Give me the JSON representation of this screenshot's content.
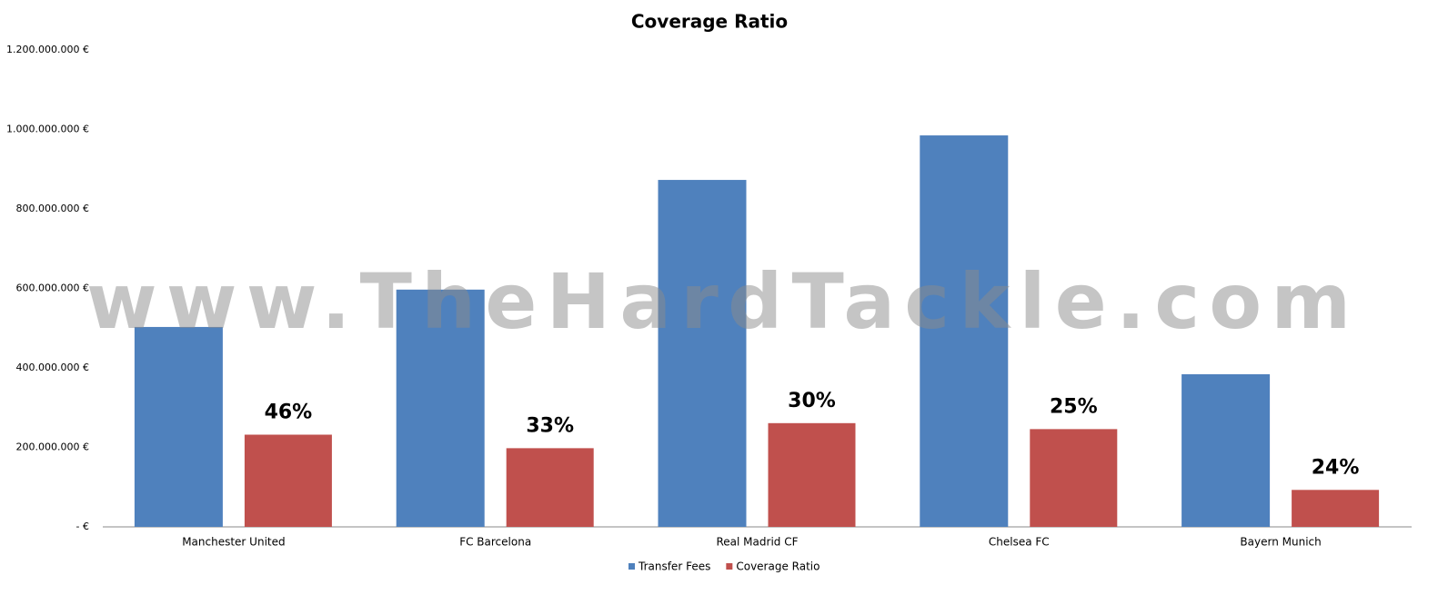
{
  "chart_data": {
    "type": "bar",
    "title": "Coverage Ratio",
    "categories": [
      "Manchester United",
      "FC Barcelona",
      "Real Madrid CF",
      "Chelsea FC",
      "Bayern Munich"
    ],
    "series": [
      {
        "name": "Transfer Fees",
        "color": "#4f81bd",
        "values": [
          503000000,
          597000000,
          873000000,
          985000000,
          384000000
        ]
      },
      {
        "name": "Coverage Ratio",
        "color": "#c0504d",
        "values": [
          232000000,
          198000000,
          261000000,
          246000000,
          93000000
        ]
      }
    ],
    "annotations": [
      "46%",
      "33%",
      "30%",
      "25%",
      "24%"
    ],
    "watermark": "www.TheHardTackle.com",
    "ylim": [
      0,
      1200000000
    ],
    "yticks": [
      {
        "value": 0,
        "label": "- €"
      },
      {
        "value": 200000000,
        "label": "200.000.000 €"
      },
      {
        "value": 400000000,
        "label": "400.000.000 €"
      },
      {
        "value": 600000000,
        "label": "600.000.000 €"
      },
      {
        "value": 800000000,
        "label": "800.000.000 €"
      },
      {
        "value": 1000000000,
        "label": "1.000.000.000 €"
      },
      {
        "value": 1200000000,
        "label": "1.200.000.000 €"
      }
    ],
    "grid": false,
    "legend": "bottom"
  }
}
